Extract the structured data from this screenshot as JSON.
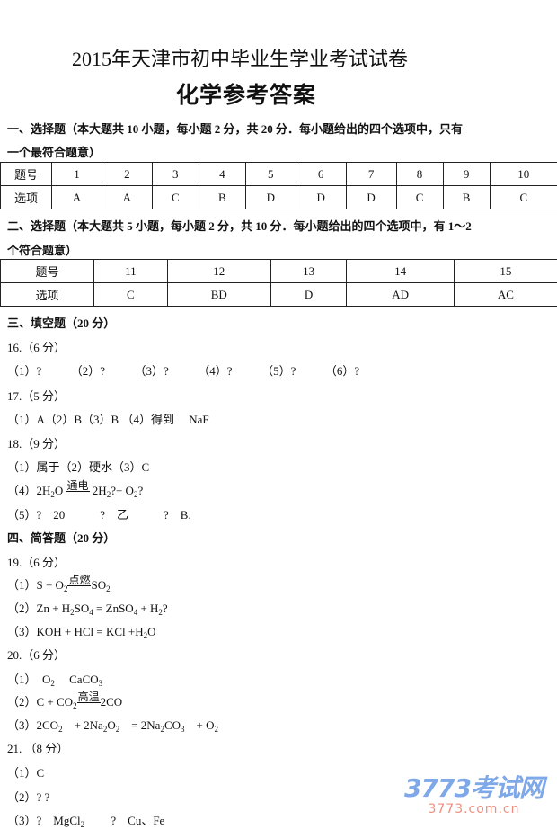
{
  "header": {
    "title": "2015年天津市初中毕业生学业考试试卷",
    "subtitle": "化学参考答案"
  },
  "section1": {
    "heading_line1": "一、选择题（本大题共 10 小题，每小题 2 分，共 20 分．每小题给出的四个选项中，只有",
    "heading_line2": "一个最符合题意）",
    "table": {
      "row_labels": [
        "题号",
        "选项"
      ],
      "numbers": [
        "1",
        "2",
        "3",
        "4",
        "5",
        "6",
        "7",
        "8",
        "9",
        "10"
      ],
      "answers": [
        "A",
        "A",
        "C",
        "B",
        "D",
        "D",
        "D",
        "C",
        "B",
        "C"
      ]
    }
  },
  "section2": {
    "heading_line1": "二、选择题（本大题共 5 小题，每小题 2 分，共 10 分．每小题给出的四个选项中，有 1～2",
    "heading_line2": "个符合题意）",
    "table": {
      "row_labels": [
        "题号",
        "选项"
      ],
      "numbers": [
        "11",
        "12",
        "13",
        "14",
        "15"
      ],
      "answers": [
        "C",
        "BD",
        "D",
        "AD",
        "AC"
      ]
    }
  },
  "section3": {
    "heading": "三、填空题（20 分）"
  },
  "section4": {
    "heading": "四、简答题（20 分）"
  },
  "lines": [
    [
      {
        "t": "16.（6 分）"
      }
    ],
    [
      {
        "t": "（1）?　　　（2）?　　　（3）?　　　（4）?　　　（5）?　　　（6）?"
      }
    ],
    [
      {
        "t": "17.（5 分）"
      }
    ],
    [
      {
        "t": "（1）A（2）B（3）B （4）得到　 NaF"
      }
    ],
    [
      {
        "t": "18.（9 分）"
      }
    ],
    [
      {
        "t": "（1）属于（2）硬水（3）C"
      }
    ],
    [
      {
        "t": "（4）2H"
      },
      {
        "sub": "2"
      },
      {
        "t": "O "
      },
      {
        "over": "通电"
      },
      {
        "t": " 2H"
      },
      {
        "sub": "2"
      },
      {
        "t": "?+ O"
      },
      {
        "sub": "2"
      },
      {
        "t": "?"
      }
    ],
    [
      {
        "t": "（5）?　20　　　?　乙　　　?　B."
      }
    ],
    [
      {
        "t": "19.（6 分）"
      }
    ],
    [
      {
        "t": "（1）S + O"
      },
      {
        "sub": "2"
      },
      {
        "over": "点燃"
      },
      {
        "t": "SO"
      },
      {
        "sub": "2"
      }
    ],
    [
      {
        "t": "（2）Zn + H"
      },
      {
        "sub": "2"
      },
      {
        "t": "SO"
      },
      {
        "sub": "4"
      },
      {
        "t": " = ZnSO"
      },
      {
        "sub": "4"
      },
      {
        "t": " + H"
      },
      {
        "sub": "2"
      },
      {
        "t": "?"
      }
    ],
    [
      {
        "t": "（3）KOH + HCl = KCl +H"
      },
      {
        "sub": "2"
      },
      {
        "t": "O"
      }
    ],
    [
      {
        "t": "20.（6 分）"
      }
    ],
    [
      {
        "t": "（1）　O"
      },
      {
        "sub": "2"
      },
      {
        "t": "　  CaCO"
      },
      {
        "sub": "3"
      }
    ],
    [
      {
        "t": "（2）C + CO"
      },
      {
        "sub": "2"
      },
      {
        "over": "高温"
      },
      {
        "t": "2CO"
      }
    ],
    [
      {
        "t": "（3）2CO"
      },
      {
        "sub": "2"
      },
      {
        "t": "　+ 2Na"
      },
      {
        "sub": "2"
      },
      {
        "t": "O"
      },
      {
        "sub": "2"
      },
      {
        "t": "　= 2Na"
      },
      {
        "sub": "2"
      },
      {
        "t": "CO"
      },
      {
        "sub": "3"
      },
      {
        "t": "　+ O"
      },
      {
        "sub": "2"
      }
    ],
    [
      {
        "t": "21. （8 分）"
      }
    ],
    [
      {
        "t": "（1）C"
      }
    ],
    [
      {
        "t": "（2）?  ?"
      }
    ],
    [
      {
        "t": "（3）?　MgCl"
      },
      {
        "sub": "2"
      },
      {
        "t": "　　 ?　Cu、Fe"
      }
    ]
  ],
  "logo": {
    "brand": "3773考试网",
    "url": "3773.com.cn"
  },
  "colors": {
    "logo_blue": "#7fa8e8",
    "logo_red": "#f08f80"
  }
}
